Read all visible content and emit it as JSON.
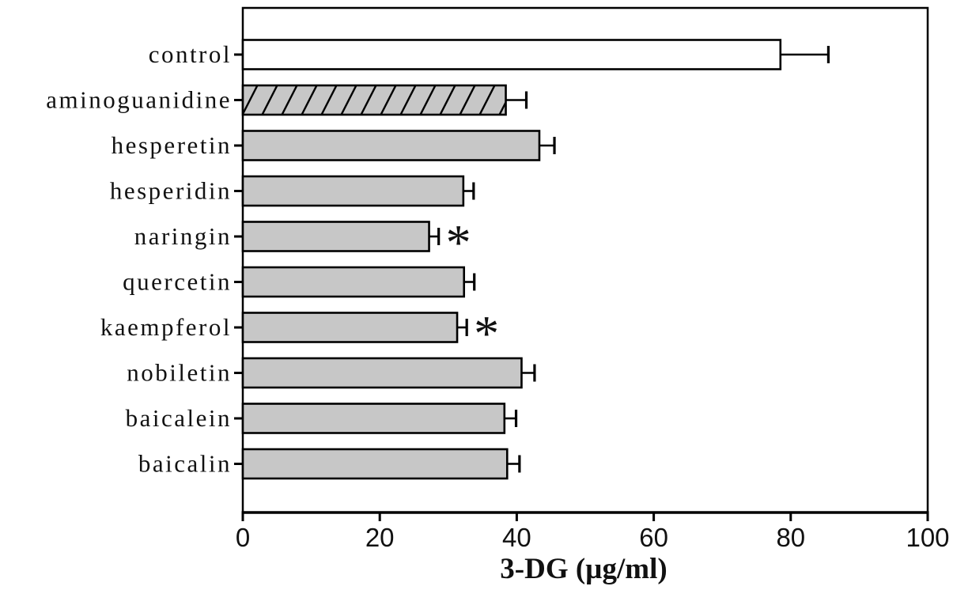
{
  "chart_data": {
    "type": "bar",
    "orientation": "horizontal",
    "title": "",
    "xlabel": "3-DG (µg/ml)",
    "ylabel": "",
    "xlim": [
      0,
      100
    ],
    "xticks": [
      0,
      20,
      40,
      60,
      80,
      100
    ],
    "xtick_labels": [
      "0",
      "20",
      "40",
      "60",
      "80",
      "100"
    ],
    "grid": false,
    "legend": "none",
    "categories": [
      "control",
      "aminoguanidine",
      "hesperetin",
      "hesperidin",
      "naringin",
      "quercetin",
      "kaempferol",
      "nobiletin",
      "baicalein",
      "baicalin"
    ],
    "values": [
      78.5,
      38.4,
      43.3,
      32.2,
      27.2,
      32.3,
      31.3,
      40.7,
      38.2,
      38.6
    ],
    "errors": [
      7.0,
      3.0,
      2.2,
      1.5,
      1.4,
      1.5,
      1.4,
      1.9,
      1.7,
      1.8
    ],
    "error_direction": "positive-only",
    "significance": [
      "",
      "",
      "",
      "",
      "*",
      "",
      "*",
      "",
      "",
      ""
    ],
    "bar_fills": [
      "white",
      "hatch",
      "gray",
      "gray",
      "gray",
      "gray",
      "gray",
      "gray",
      "gray",
      "gray"
    ],
    "hatch_style": "forward-diagonal",
    "colors": {
      "bar_gray": "#c7c7c7",
      "bar_white": "#ffffff",
      "border": "#000000",
      "background": "#ffffff",
      "text": "#111111"
    }
  }
}
